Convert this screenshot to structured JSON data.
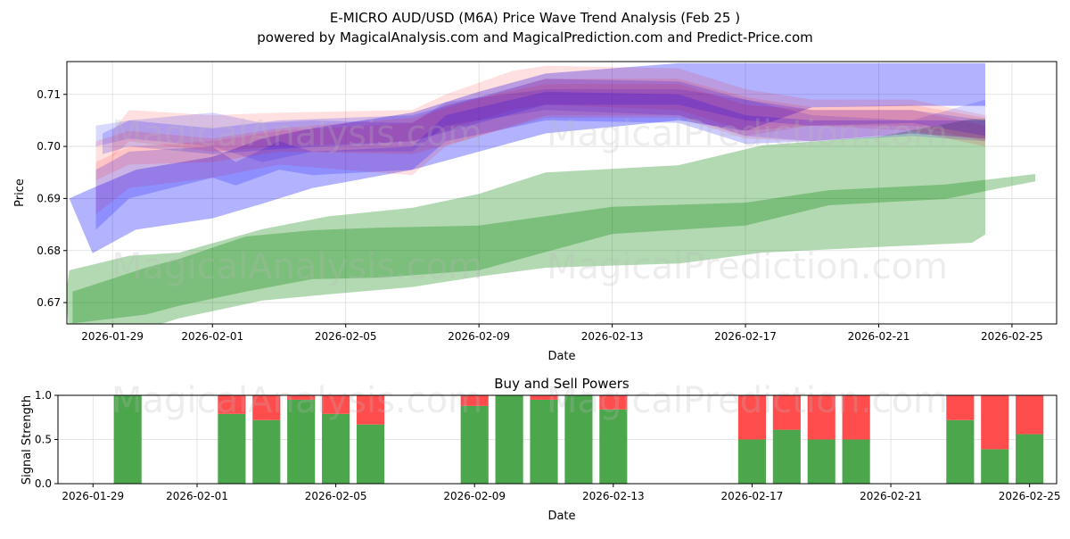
{
  "title_line1": "E-MICRO AUD/USD (M6A) Price Wave Trend Analysis (Feb 25 )",
  "title_line2": "powered by MagicalAnalysis.com and MagicalPrediction.com and Predict-Price.com",
  "watermarks": [
    "MagicalAnalysis.com",
    "MagicalPrediction.com"
  ],
  "chart_data": [
    {
      "type": "area",
      "title": "",
      "xlabel": "Date",
      "ylabel": "Price",
      "x_origin": "2026-01-29",
      "x_unit": "days since x_origin",
      "xlim": [
        -1.37,
        28.34
      ],
      "ylim": [
        0.6659,
        0.7163
      ],
      "grid": true,
      "xticks": [
        {
          "day": 0,
          "label": "2026-01-29"
        },
        {
          "day": 3,
          "label": "2026-02-01"
        },
        {
          "day": 7,
          "label": "2026-02-05"
        },
        {
          "day": 11,
          "label": "2026-02-09"
        },
        {
          "day": 15,
          "label": "2026-02-13"
        },
        {
          "day": 19,
          "label": "2026-02-17"
        },
        {
          "day": 23,
          "label": "2026-02-21"
        },
        {
          "day": 27,
          "label": "2026-02-25"
        }
      ],
      "yticks": [
        {
          "value": 0.67,
          "label": "0.67"
        },
        {
          "value": 0.68,
          "label": "0.68"
        },
        {
          "value": 0.69,
          "label": "0.69"
        },
        {
          "value": 0.7,
          "label": "0.70"
        },
        {
          "value": 0.71,
          "label": "0.71"
        }
      ],
      "series": [
        {
          "name": "green-outer-band",
          "color": "#008000",
          "opacity": 0.3,
          "x": [
            -1.4,
            -1.3,
            0.5,
            2,
            4.5,
            6.5,
            9,
            11,
            13,
            17,
            19.5,
            23,
            25.8,
            26.2
          ],
          "upper": [
            0.6715,
            0.6762,
            0.679,
            0.6796,
            0.6841,
            0.6866,
            0.6882,
            0.6909,
            0.695,
            0.6964,
            0.7002,
            0.7019,
            0.7053,
            0.7053
          ],
          "lower": [
            0.6715,
            0.664,
            0.664,
            0.667,
            0.6704,
            0.6716,
            0.673,
            0.675,
            0.6767,
            0.6775,
            0.6796,
            0.6807,
            0.6815,
            0.6831
          ]
        },
        {
          "name": "green-core-band",
          "color": "#008000",
          "opacity": 0.3,
          "x": [
            -1.2,
            1,
            2,
            4,
            6,
            8,
            11,
            15,
            19,
            21.5,
            25,
            27.7
          ],
          "upper": [
            0.6721,
            0.6767,
            0.6784,
            0.6827,
            0.6839,
            0.6844,
            0.6848,
            0.6884,
            0.6892,
            0.6916,
            0.6927,
            0.6947
          ],
          "lower": [
            0.666,
            0.6677,
            0.6694,
            0.6721,
            0.6745,
            0.6748,
            0.6762,
            0.6832,
            0.6848,
            0.6887,
            0.6899,
            0.6933
          ]
        },
        {
          "name": "blue-wide-band",
          "color": "#0000ff",
          "opacity": 0.3,
          "x": [
            -1.3,
            -0.6,
            0.7,
            3,
            4.5,
            6,
            9,
            11,
            13,
            17,
            19,
            21,
            24,
            26.2
          ],
          "upper": [
            0.69,
            0.692,
            0.6955,
            0.698,
            0.7015,
            0.7035,
            0.7065,
            0.7105,
            0.714,
            0.716,
            0.716,
            0.716,
            0.716,
            0.716
          ],
          "lower": [
            0.69,
            0.6795,
            0.684,
            0.6862,
            0.689,
            0.692,
            0.6955,
            0.699,
            0.7025,
            0.705,
            0.703,
            0.7075,
            0.7078,
            0.7078
          ]
        },
        {
          "name": "red-band-1",
          "color": "#ff0000",
          "opacity": 0.12,
          "x": [
            0,
            0.5,
            3,
            5,
            9,
            10,
            12,
            13,
            17,
            19,
            21,
            24,
            26.2
          ],
          "upper": [
            0.703,
            0.707,
            0.706,
            0.7065,
            0.707,
            0.71,
            0.7145,
            0.7155,
            0.715,
            0.711,
            0.709,
            0.709,
            0.706
          ],
          "lower": [
            0.698,
            0.701,
            0.699,
            0.7,
            0.701,
            0.703,
            0.707,
            0.708,
            0.707,
            0.703,
            0.704,
            0.704,
            0.701
          ]
        },
        {
          "name": "blue-band-1",
          "color": "#0000ff",
          "opacity": 0.15,
          "x": [
            -0.5,
            0.5,
            3,
            4.5,
            6,
            9,
            10,
            13,
            17,
            19,
            21,
            24,
            26.2
          ],
          "upper": [
            0.704,
            0.705,
            0.7065,
            0.7045,
            0.705,
            0.7045,
            0.7085,
            0.711,
            0.711,
            0.709,
            0.706,
            0.705,
            0.709
          ],
          "lower": [
            0.7,
            0.7015,
            0.7,
            0.697,
            0.699,
            0.699,
            0.704,
            0.707,
            0.706,
            0.702,
            0.701,
            0.702,
            0.701
          ]
        },
        {
          "name": "red-band-2",
          "color": "#ff0000",
          "opacity": 0.12,
          "x": [
            -0.5,
            0.5,
            3,
            5,
            9,
            10,
            13,
            17,
            19,
            21,
            24,
            26.2
          ],
          "upper": [
            0.697,
            0.7,
            0.701,
            0.703,
            0.7045,
            0.708,
            0.712,
            0.712,
            0.708,
            0.707,
            0.707,
            0.704
          ],
          "lower": [
            0.687,
            0.692,
            0.694,
            0.6965,
            0.6945,
            0.7,
            0.706,
            0.706,
            0.702,
            0.704,
            0.703,
            0.7
          ]
        },
        {
          "name": "blue-band-2",
          "color": "#0000ff",
          "opacity": 0.2,
          "x": [
            -0.5,
            0.5,
            3,
            3.7,
            5,
            6,
            9,
            10,
            13,
            17,
            19,
            21,
            24,
            26.2
          ],
          "upper": [
            0.6955,
            0.699,
            0.7,
            0.697,
            0.701,
            0.699,
            0.7,
            0.706,
            0.7105,
            0.71,
            0.706,
            0.705,
            0.705,
            0.705
          ],
          "lower": [
            0.684,
            0.69,
            0.694,
            0.6925,
            0.6955,
            0.6945,
            0.6955,
            0.701,
            0.705,
            0.7045,
            0.7005,
            0.701,
            0.7025,
            0.7015
          ]
        },
        {
          "name": "blue-band-3",
          "color": "#0000ff",
          "opacity": 0.18,
          "x": [
            -0.3,
            0.5,
            3,
            5,
            9,
            13,
            17,
            19,
            21,
            24,
            26.2
          ],
          "upper": [
            0.7025,
            0.705,
            0.7035,
            0.705,
            0.706,
            0.713,
            0.7125,
            0.709,
            0.707,
            0.707,
            0.705
          ],
          "lower": [
            0.6985,
            0.7,
            0.6985,
            0.6995,
            0.701,
            0.708,
            0.708,
            0.705,
            0.704,
            0.7045,
            0.702
          ]
        },
        {
          "name": "red-band-3",
          "color": "#ff0000",
          "opacity": 0.12,
          "x": [
            -0.5,
            0.5,
            3,
            5,
            9,
            13,
            17,
            19,
            21,
            24,
            26.2
          ],
          "upper": [
            0.701,
            0.703,
            0.7015,
            0.7035,
            0.7055,
            0.713,
            0.713,
            0.7095,
            0.7075,
            0.708,
            0.7055
          ],
          "lower": [
            0.6935,
            0.6965,
            0.697,
            0.699,
            0.6985,
            0.7055,
            0.7055,
            0.7015,
            0.701,
            0.7025,
            0.7015
          ]
        }
      ]
    },
    {
      "type": "bar",
      "title": "Buy and Sell Powers",
      "xlabel": "Date",
      "ylabel": "Signal Strength",
      "x_origin": "2026-01-29",
      "xlim": [
        -1.01,
        27.78
      ],
      "ylim": [
        0,
        1
      ],
      "grid": true,
      "xticks": [
        {
          "day": 0,
          "label": "2026-01-29"
        },
        {
          "day": 3,
          "label": "2026-02-01"
        },
        {
          "day": 7,
          "label": "2026-02-05"
        },
        {
          "day": 11,
          "label": "2026-02-09"
        },
        {
          "day": 15,
          "label": "2026-02-13"
        },
        {
          "day": 19,
          "label": "2026-02-17"
        },
        {
          "day": 23,
          "label": "2026-02-21"
        },
        {
          "day": 27,
          "label": "2026-02-25"
        }
      ],
      "yticks": [
        {
          "value": 0,
          "label": "0.0"
        },
        {
          "value": 0.5,
          "label": "0.5"
        },
        {
          "value": 1,
          "label": "1.0"
        }
      ],
      "colors": {
        "buy": "#4ca64c",
        "sell": "#ff4c4c"
      },
      "categories": [
        "2026-01-30",
        "2026-02-02",
        "2026-02-03",
        "2026-02-04",
        "2026-02-05",
        "2026-02-06",
        "2026-02-09",
        "2026-02-10",
        "2026-02-11",
        "2026-02-12",
        "2026-02-13",
        "2026-02-17",
        "2026-02-18",
        "2026-02-19",
        "2026-02-20",
        "2026-02-23",
        "2026-02-24",
        "2026-02-25"
      ],
      "series": [
        {
          "name": "Buy",
          "values": [
            1.0,
            0.79,
            0.72,
            0.95,
            0.79,
            0.67,
            0.88,
            1.0,
            0.95,
            1.0,
            0.84,
            0.5,
            0.61,
            0.5,
            0.5,
            0.72,
            0.39,
            0.56
          ]
        },
        {
          "name": "Sell",
          "values": [
            0.0,
            0.21,
            0.28,
            0.05,
            0.21,
            0.33,
            0.12,
            0.0,
            0.05,
            0.0,
            0.16,
            0.5,
            0.39,
            0.5,
            0.5,
            0.28,
            0.61,
            0.44
          ]
        }
      ]
    }
  ]
}
